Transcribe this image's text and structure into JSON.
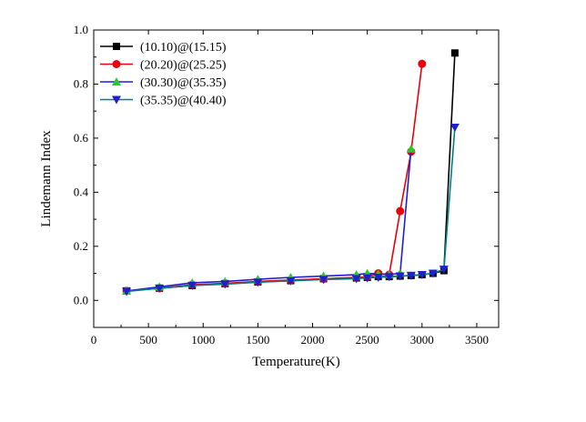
{
  "chart_data": {
    "type": "line",
    "title": "",
    "xlabel": "Temperature(K)",
    "ylabel": "Lindemann Index",
    "xlim": [
      0,
      3700
    ],
    "ylim": [
      -0.1,
      1.0
    ],
    "xticks": [
      0,
      500,
      1000,
      1500,
      2000,
      2500,
      3000,
      3500
    ],
    "yticks": [
      0.0,
      0.2,
      0.4,
      0.6,
      0.8,
      1.0
    ],
    "xtick_labels": [
      "0",
      "500",
      "1000",
      "1500",
      "2000",
      "2500",
      "3000",
      "3500"
    ],
    "ytick_labels": [
      "0.0",
      "0.2",
      "0.4",
      "0.6",
      "0.8",
      "1.0"
    ],
    "grid": false,
    "legend_position": "top-left",
    "series": [
      {
        "name": "(10.10)@(15.15)",
        "color": "#000000",
        "marker": "square",
        "x": [
          300,
          600,
          900,
          1200,
          1500,
          1800,
          2100,
          2400,
          2500,
          2600,
          2700,
          2800,
          2900,
          3000,
          3100,
          3200,
          3300
        ],
        "y": [
          0.035,
          0.045,
          0.055,
          0.062,
          0.068,
          0.073,
          0.08,
          0.083,
          0.085,
          0.088,
          0.088,
          0.09,
          0.092,
          0.095,
          0.1,
          0.11,
          0.915
        ]
      },
      {
        "name": "(20.20)@(25.25)",
        "color": "#e8000b",
        "marker": "circle",
        "x": [
          300,
          600,
          900,
          1200,
          1500,
          1800,
          2100,
          2400,
          2500,
          2600,
          2700,
          2800,
          2900,
          3000
        ],
        "y": [
          0.035,
          0.045,
          0.058,
          0.063,
          0.07,
          0.075,
          0.08,
          0.085,
          0.087,
          0.1,
          0.095,
          0.33,
          0.55,
          0.875
        ]
      },
      {
        "name": "(30.30)@(35.35)",
        "color": "#2ec82e",
        "line_color": "#1f1fd0",
        "marker": "triangle-up",
        "x": [
          300,
          600,
          900,
          1200,
          1500,
          1800,
          2100,
          2400,
          2500,
          2600,
          2700,
          2800,
          2900
        ],
        "y": [
          0.035,
          0.05,
          0.065,
          0.07,
          0.078,
          0.085,
          0.09,
          0.095,
          0.1,
          0.098,
          0.095,
          0.1,
          0.56
        ]
      },
      {
        "name": "(35.35)@(40.40)",
        "color": "#1f1fd0",
        "line_color": "#008080",
        "marker": "triangle-down",
        "x": [
          300,
          600,
          900,
          1200,
          1500,
          1800,
          2100,
          2400,
          2500,
          2600,
          2700,
          2800,
          2900,
          3000,
          3100,
          3200,
          3300
        ],
        "y": [
          0.033,
          0.045,
          0.055,
          0.06,
          0.067,
          0.072,
          0.077,
          0.08,
          0.083,
          0.085,
          0.087,
          0.09,
          0.092,
          0.095,
          0.1,
          0.115,
          0.64
        ]
      }
    ]
  }
}
